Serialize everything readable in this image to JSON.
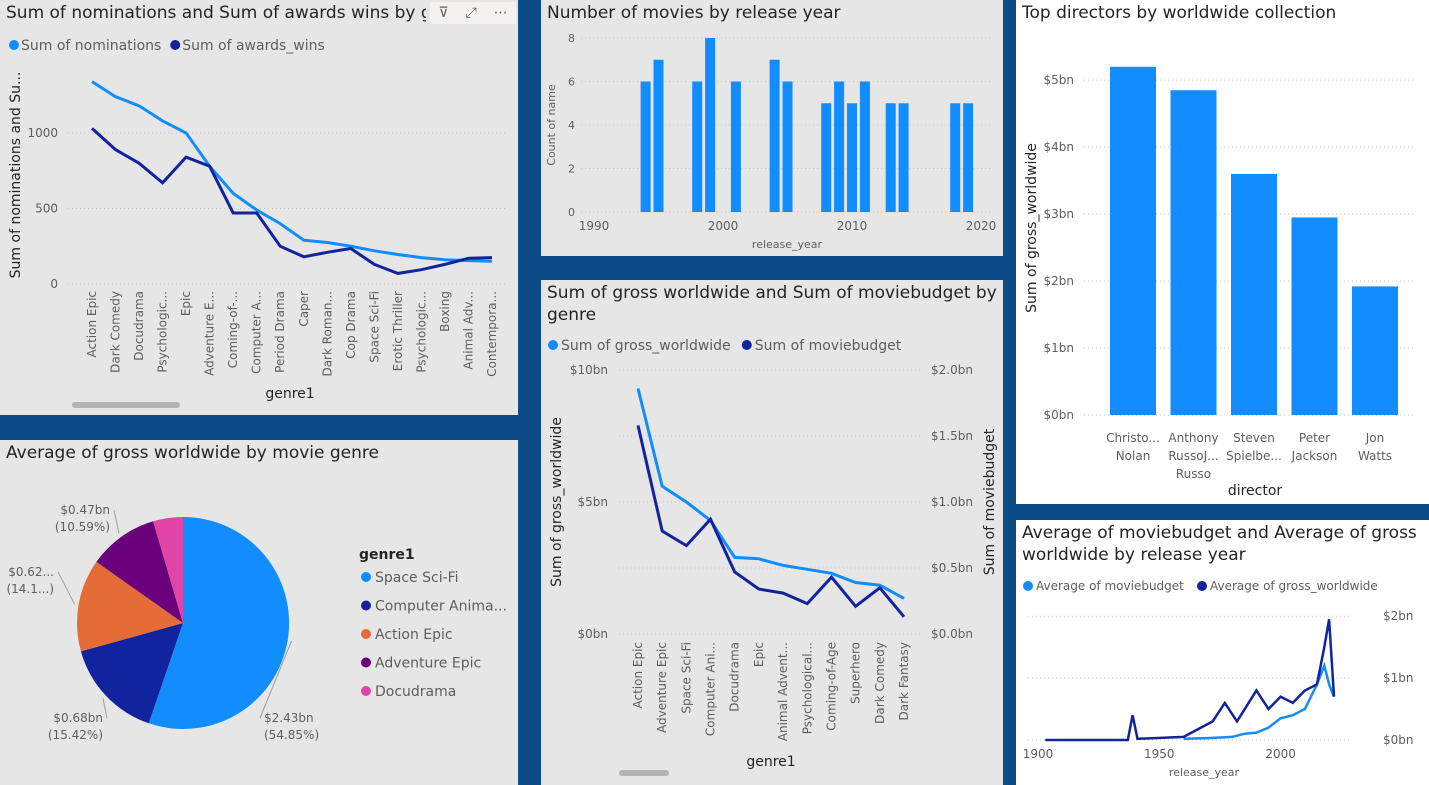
{
  "colors": {
    "background": "#0d4c87",
    "light_blue": "#118dff",
    "dark_blue": "#12239e",
    "orange": "#e66c37",
    "purple": "#6b007b",
    "pink": "#e044a7"
  },
  "visual_header": {
    "filter_icon": "funnel-icon",
    "focus_icon": "focus-mode-icon",
    "more_icon": "more-options-icon",
    "filter_glyph": "⊽",
    "focus_glyph": "⤢",
    "more_glyph": "⋯"
  },
  "charts": {
    "nominations": {
      "title": "Sum of nominations and Sum of awards wins by genre",
      "legend": [
        "Sum of nominations",
        "Sum of awards_wins"
      ],
      "ylabel": "Sum of nominations and Su...",
      "xlabel": "genre1",
      "y_ticks": [
        "0",
        "500",
        "1000"
      ]
    },
    "release_year": {
      "title": "Number of movies by release year",
      "ylabel": "Count of name",
      "xlabel": "release_year",
      "y_ticks": [
        "0",
        "2",
        "4",
        "6",
        "8"
      ],
      "x_ticks": [
        "1990",
        "2000",
        "2010",
        "2020"
      ]
    },
    "directors": {
      "title": "Top directors by worldwide collection",
      "ylabel": "Sum of gross_worldwide",
      "xlabel": "director",
      "y_ticks": [
        "$0bn",
        "$1bn",
        "$2bn",
        "$3bn",
        "$4bn",
        "$5bn"
      ]
    },
    "pie": {
      "title": "Average of gross worldwide by movie genre",
      "legend_title": "genre1",
      "legend": [
        "Space Sci-Fi",
        "Computer Anima...",
        "Action Epic",
        "Adventure Epic",
        "Docudrama"
      ]
    },
    "gross_budget": {
      "title": "Sum of gross worldwide and Sum of moviebudget by genre",
      "legend": [
        "Sum of gross_worldwide",
        "Sum of moviebudget"
      ],
      "ylabel_left": "Sum of gross_worldwide",
      "ylabel_right": "Sum of moviebudget",
      "xlabel": "genre1",
      "y_ticks_left": [
        "$0bn",
        "$5bn",
        "$10bn"
      ],
      "y_ticks_right": [
        "$0.0bn",
        "$0.5bn",
        "$1.0bn",
        "$1.5bn",
        "$2.0bn"
      ]
    },
    "avg_year": {
      "title": "Average of moviebudget and Average of gross worldwide by release year",
      "legend": [
        "Average of moviebudget",
        "Average of gross_worldwide"
      ],
      "xlabel": "release_year",
      "y_ticks": [
        "$0bn",
        "$1bn",
        "$2bn"
      ],
      "x_ticks": [
        "1900",
        "1950",
        "2000"
      ]
    }
  },
  "chart_data": [
    {
      "type": "line",
      "title": "Sum of nominations and Sum of awards wins by genre",
      "xlabel": "genre1",
      "ylabel": "Sum of nominations and Su...",
      "categories": [
        "Action Epic",
        "Dark Comedy",
        "Docudrama",
        "Psychologic...",
        "Epic",
        "Adventure E...",
        "Coming-of-...",
        "Computer A...",
        "Period Drama",
        "Caper",
        "Dark Roman...",
        "Cop Drama",
        "Space Sci-Fi",
        "Erotic Thriller",
        "Psychologic...",
        "Boxing",
        "Animal Adv...",
        "Contempora..."
      ],
      "series": [
        {
          "name": "Sum of nominations",
          "values": [
            1340,
            1240,
            1180,
            1080,
            1000,
            780,
            600,
            490,
            400,
            290,
            275,
            250,
            220,
            195,
            175,
            160,
            155,
            150
          ]
        },
        {
          "name": "Sum of awards_wins",
          "values": [
            1030,
            890,
            800,
            670,
            840,
            780,
            470,
            470,
            250,
            180,
            210,
            235,
            130,
            70,
            95,
            130,
            170,
            175
          ]
        }
      ],
      "ylim": [
        0,
        1450
      ]
    },
    {
      "type": "bar",
      "title": "Number of movies by release year",
      "xlabel": "release_year",
      "ylabel": "Count of name",
      "x": [
        1994,
        1995,
        1998,
        1999,
        2001,
        2004,
        2005,
        2008,
        2009,
        2010,
        2011,
        2013,
        2014,
        2018,
        2019
      ],
      "values": [
        6,
        7,
        6,
        8,
        6,
        7,
        6,
        5,
        6,
        5,
        6,
        5,
        5,
        5,
        5
      ],
      "xlim": [
        1990,
        2020
      ],
      "ylim": [
        0,
        8
      ]
    },
    {
      "type": "bar",
      "title": "Top directors by worldwide collection",
      "xlabel": "director",
      "ylabel": "Sum of gross_worldwide",
      "categories": [
        [
          "Christo...",
          "Nolan"
        ],
        [
          "Anthony",
          "RussoJ...",
          "Russo"
        ],
        [
          "Steven",
          "Spielbe..."
        ],
        [
          "Peter",
          "Jackson"
        ],
        [
          "Jon",
          "Watts"
        ]
      ],
      "values": [
        5.2,
        4.85,
        3.6,
        2.95,
        1.92
      ],
      "ylim": [
        0,
        5.6
      ]
    },
    {
      "type": "pie",
      "title": "Average of gross worldwide by movie genre",
      "categories": [
        "Space Sci-Fi",
        "Computer Anima...",
        "Action Epic",
        "Adventure Epic",
        "Docudrama"
      ],
      "values": [
        2.43,
        0.68,
        0.62,
        0.47,
        0.2
      ],
      "percents": [
        54.85,
        15.42,
        14.1,
        10.59,
        5.04
      ],
      "labels": [
        [
          "$2.43bn",
          "(54.85%)"
        ],
        [
          "$0.68bn",
          "(15.42%)"
        ],
        [
          "$0.62...",
          "(14.1...)"
        ],
        [
          "$0.47bn",
          "(10.59%)"
        ],
        null
      ]
    },
    {
      "type": "line",
      "title": "Sum of gross worldwide and Sum of moviebudget by genre",
      "xlabel": "genre1",
      "categories": [
        "Action Epic",
        "Adventure Epic",
        "Space Sci-Fi",
        "Computer Ani...",
        "Docudrama",
        "Epic",
        "Animal Advent...",
        "Psychological...",
        "Coming-of-Age",
        "Superhero",
        "Dark Comedy",
        "Dark Fantasy"
      ],
      "series": [
        {
          "name": "Sum of gross_worldwide",
          "axis": "left",
          "values": [
            9.3,
            5.6,
            5.0,
            4.3,
            2.9,
            2.85,
            2.6,
            2.45,
            2.3,
            1.95,
            1.85,
            1.35
          ]
        },
        {
          "name": "Sum of moviebudget",
          "axis": "right",
          "values": [
            1.58,
            0.78,
            0.67,
            0.87,
            0.47,
            0.34,
            0.31,
            0.23,
            0.43,
            0.21,
            0.35,
            0.13
          ]
        }
      ],
      "ylim_left": [
        0,
        10
      ],
      "ylim_right": [
        0,
        2.0
      ]
    },
    {
      "type": "line",
      "title": "Average of moviebudget and Average of gross worldwide by release year",
      "xlabel": "release_year",
      "x_range": [
        1900,
        2022
      ],
      "series": [
        {
          "name": "Average of moviebudget",
          "points": [
            [
              1960,
              0.02
            ],
            [
              1970,
              0.03
            ],
            [
              1980,
              0.05
            ],
            [
              1985,
              0.1
            ],
            [
              1990,
              0.12
            ],
            [
              1995,
              0.2
            ],
            [
              2000,
              0.35
            ],
            [
              2005,
              0.4
            ],
            [
              2010,
              0.5
            ],
            [
              2015,
              0.9
            ],
            [
              2018,
              1.2
            ],
            [
              2020,
              0.9
            ],
            [
              2022,
              0.7
            ]
          ]
        },
        {
          "name": "Average of gross_worldwide",
          "points": [
            [
              1903,
              0.0
            ],
            [
              1937,
              0.0
            ],
            [
              1939,
              0.4
            ],
            [
              1941,
              0.02
            ],
            [
              1960,
              0.05
            ],
            [
              1972,
              0.3
            ],
            [
              1977,
              0.6
            ],
            [
              1982,
              0.3
            ],
            [
              1990,
              0.8
            ],
            [
              1995,
              0.5
            ],
            [
              2000,
              0.7
            ],
            [
              2005,
              0.6
            ],
            [
              2010,
              0.8
            ],
            [
              2015,
              0.9
            ],
            [
              2018,
              1.5
            ],
            [
              2020,
              1.95
            ],
            [
              2022,
              0.7
            ]
          ]
        }
      ],
      "ylim": [
        0,
        2.1
      ]
    }
  ]
}
